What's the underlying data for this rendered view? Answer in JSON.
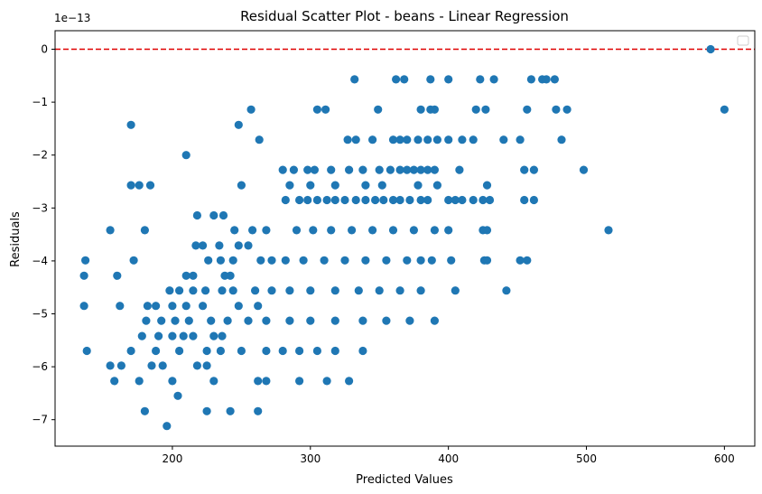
{
  "chart_data": {
    "type": "scatter",
    "title": "Residual Scatter Plot - beans  - Linear Regression",
    "xlabel": "Predicted Values",
    "ylabel": "Residuals",
    "y_offset_label": "1e−13",
    "xlim": [
      115,
      622
    ],
    "ylim": [
      -7.5,
      0.35
    ],
    "xticks": [
      200,
      300,
      400,
      500,
      600
    ],
    "xtick_labels": [
      "200",
      "300",
      "400",
      "500",
      "600"
    ],
    "yticks": [
      0,
      -1,
      -2,
      -3,
      -4,
      -5,
      -6,
      -7
    ],
    "ytick_labels": [
      "0",
      "−1",
      "−2",
      "−3",
      "−4",
      "−5",
      "−6",
      "−7"
    ],
    "grid": false,
    "legend": "top-right (empty)",
    "reference_line": {
      "y": 0,
      "color": "#e00000",
      "style": "dashed"
    },
    "point_color": "#1f77b4",
    "series": [
      {
        "points": [
          [
            590,
            0
          ],
          [
            600,
            -1.14
          ],
          [
            332,
            -0.57
          ],
          [
            362,
            -0.57
          ],
          [
            368,
            -0.57
          ],
          [
            387,
            -0.57
          ],
          [
            400,
            -0.57
          ],
          [
            423,
            -0.57
          ],
          [
            433,
            -0.57
          ],
          [
            460,
            -0.57
          ],
          [
            468,
            -0.57
          ],
          [
            471,
            -0.57
          ],
          [
            477,
            -0.57
          ],
          [
            257,
            -1.14
          ],
          [
            305,
            -1.14
          ],
          [
            311,
            -1.14
          ],
          [
            349,
            -1.14
          ],
          [
            380,
            -1.14
          ],
          [
            387,
            -1.14
          ],
          [
            390,
            -1.14
          ],
          [
            420,
            -1.14
          ],
          [
            427,
            -1.14
          ],
          [
            457,
            -1.14
          ],
          [
            478,
            -1.14
          ],
          [
            486,
            -1.14
          ],
          [
            170,
            -1.43
          ],
          [
            248,
            -1.43
          ],
          [
            263,
            -1.71
          ],
          [
            327,
            -1.71
          ],
          [
            333,
            -1.71
          ],
          [
            345,
            -1.71
          ],
          [
            360,
            -1.71
          ],
          [
            365,
            -1.71
          ],
          [
            370,
            -1.71
          ],
          [
            378,
            -1.71
          ],
          [
            385,
            -1.71
          ],
          [
            392,
            -1.71
          ],
          [
            400,
            -1.71
          ],
          [
            410,
            -1.71
          ],
          [
            418,
            -1.71
          ],
          [
            440,
            -1.71
          ],
          [
            452,
            -1.71
          ],
          [
            482,
            -1.71
          ],
          [
            210,
            -2.0
          ],
          [
            280,
            -2.28
          ],
          [
            288,
            -2.28
          ],
          [
            298,
            -2.28
          ],
          [
            303,
            -2.28
          ],
          [
            315,
            -2.28
          ],
          [
            328,
            -2.28
          ],
          [
            338,
            -2.28
          ],
          [
            350,
            -2.28
          ],
          [
            358,
            -2.28
          ],
          [
            365,
            -2.28
          ],
          [
            370,
            -2.28
          ],
          [
            375,
            -2.28
          ],
          [
            380,
            -2.28
          ],
          [
            385,
            -2.28
          ],
          [
            390,
            -2.28
          ],
          [
            408,
            -2.28
          ],
          [
            455,
            -2.28
          ],
          [
            462,
            -2.28
          ],
          [
            498,
            -2.28
          ],
          [
            170,
            -2.57
          ],
          [
            176,
            -2.57
          ],
          [
            184,
            -2.57
          ],
          [
            250,
            -2.57
          ],
          [
            285,
            -2.57
          ],
          [
            300,
            -2.57
          ],
          [
            318,
            -2.57
          ],
          [
            340,
            -2.57
          ],
          [
            352,
            -2.57
          ],
          [
            378,
            -2.57
          ],
          [
            392,
            -2.57
          ],
          [
            428,
            -2.57
          ],
          [
            282,
            -2.85
          ],
          [
            292,
            -2.85
          ],
          [
            298,
            -2.85
          ],
          [
            305,
            -2.85
          ],
          [
            312,
            -2.85
          ],
          [
            318,
            -2.85
          ],
          [
            325,
            -2.85
          ],
          [
            333,
            -2.85
          ],
          [
            340,
            -2.85
          ],
          [
            347,
            -2.85
          ],
          [
            353,
            -2.85
          ],
          [
            360,
            -2.85
          ],
          [
            365,
            -2.85
          ],
          [
            372,
            -2.85
          ],
          [
            380,
            -2.85
          ],
          [
            385,
            -2.85
          ],
          [
            400,
            -2.85
          ],
          [
            405,
            -2.85
          ],
          [
            410,
            -2.85
          ],
          [
            418,
            -2.85
          ],
          [
            425,
            -2.85
          ],
          [
            430,
            -2.85
          ],
          [
            455,
            -2.85
          ],
          [
            462,
            -2.85
          ],
          [
            218,
            -3.14
          ],
          [
            230,
            -3.14
          ],
          [
            237,
            -3.14
          ],
          [
            155,
            -3.42
          ],
          [
            180,
            -3.42
          ],
          [
            245,
            -3.42
          ],
          [
            258,
            -3.42
          ],
          [
            268,
            -3.42
          ],
          [
            290,
            -3.42
          ],
          [
            302,
            -3.42
          ],
          [
            315,
            -3.42
          ],
          [
            330,
            -3.42
          ],
          [
            345,
            -3.42
          ],
          [
            360,
            -3.42
          ],
          [
            375,
            -3.42
          ],
          [
            390,
            -3.42
          ],
          [
            400,
            -3.42
          ],
          [
            425,
            -3.42
          ],
          [
            428,
            -3.42
          ],
          [
            516,
            -3.42
          ],
          [
            217,
            -3.71
          ],
          [
            222,
            -3.71
          ],
          [
            234,
            -3.71
          ],
          [
            248,
            -3.71
          ],
          [
            255,
            -3.71
          ],
          [
            137,
            -3.99
          ],
          [
            172,
            -3.99
          ],
          [
            226,
            -3.99
          ],
          [
            235,
            -3.99
          ],
          [
            244,
            -3.99
          ],
          [
            264,
            -3.99
          ],
          [
            272,
            -3.99
          ],
          [
            282,
            -3.99
          ],
          [
            295,
            -3.99
          ],
          [
            310,
            -3.99
          ],
          [
            325,
            -3.99
          ],
          [
            340,
            -3.99
          ],
          [
            355,
            -3.99
          ],
          [
            370,
            -3.99
          ],
          [
            380,
            -3.99
          ],
          [
            388,
            -3.99
          ],
          [
            402,
            -3.99
          ],
          [
            426,
            -3.99
          ],
          [
            428,
            -3.99
          ],
          [
            452,
            -3.99
          ],
          [
            457,
            -3.99
          ],
          [
            136,
            -4.28
          ],
          [
            160,
            -4.28
          ],
          [
            210,
            -4.28
          ],
          [
            215,
            -4.28
          ],
          [
            238,
            -4.28
          ],
          [
            242,
            -4.28
          ],
          [
            198,
            -4.56
          ],
          [
            205,
            -4.56
          ],
          [
            215,
            -4.56
          ],
          [
            224,
            -4.56
          ],
          [
            236,
            -4.56
          ],
          [
            244,
            -4.56
          ],
          [
            260,
            -4.56
          ],
          [
            272,
            -4.56
          ],
          [
            285,
            -4.56
          ],
          [
            300,
            -4.56
          ],
          [
            318,
            -4.56
          ],
          [
            335,
            -4.56
          ],
          [
            350,
            -4.56
          ],
          [
            365,
            -4.56
          ],
          [
            380,
            -4.56
          ],
          [
            405,
            -4.56
          ],
          [
            442,
            -4.56
          ],
          [
            136,
            -4.85
          ],
          [
            162,
            -4.85
          ],
          [
            182,
            -4.85
          ],
          [
            188,
            -4.85
          ],
          [
            200,
            -4.85
          ],
          [
            210,
            -4.85
          ],
          [
            222,
            -4.85
          ],
          [
            248,
            -4.85
          ],
          [
            262,
            -4.85
          ],
          [
            181,
            -5.13
          ],
          [
            192,
            -5.13
          ],
          [
            202,
            -5.13
          ],
          [
            212,
            -5.13
          ],
          [
            228,
            -5.13
          ],
          [
            240,
            -5.13
          ],
          [
            255,
            -5.13
          ],
          [
            268,
            -5.13
          ],
          [
            285,
            -5.13
          ],
          [
            300,
            -5.13
          ],
          [
            318,
            -5.13
          ],
          [
            338,
            -5.13
          ],
          [
            355,
            -5.13
          ],
          [
            372,
            -5.13
          ],
          [
            390,
            -5.13
          ],
          [
            178,
            -5.42
          ],
          [
            190,
            -5.42
          ],
          [
            200,
            -5.42
          ],
          [
            208,
            -5.42
          ],
          [
            215,
            -5.42
          ],
          [
            230,
            -5.42
          ],
          [
            236,
            -5.42
          ],
          [
            138,
            -5.7
          ],
          [
            170,
            -5.7
          ],
          [
            188,
            -5.7
          ],
          [
            205,
            -5.7
          ],
          [
            225,
            -5.7
          ],
          [
            235,
            -5.7
          ],
          [
            250,
            -5.7
          ],
          [
            268,
            -5.7
          ],
          [
            280,
            -5.7
          ],
          [
            292,
            -5.7
          ],
          [
            305,
            -5.7
          ],
          [
            318,
            -5.7
          ],
          [
            338,
            -5.7
          ],
          [
            155,
            -5.98
          ],
          [
            163,
            -5.98
          ],
          [
            185,
            -5.98
          ],
          [
            193,
            -5.98
          ],
          [
            218,
            -5.98
          ],
          [
            225,
            -5.98
          ],
          [
            158,
            -6.27
          ],
          [
            176,
            -6.27
          ],
          [
            200,
            -6.27
          ],
          [
            230,
            -6.27
          ],
          [
            262,
            -6.27
          ],
          [
            268,
            -6.27
          ],
          [
            292,
            -6.27
          ],
          [
            312,
            -6.27
          ],
          [
            328,
            -6.27
          ],
          [
            204,
            -6.55
          ],
          [
            180,
            -6.84
          ],
          [
            225,
            -6.84
          ],
          [
            242,
            -6.84
          ],
          [
            262,
            -6.84
          ],
          [
            196,
            -7.12
          ]
        ]
      }
    ]
  }
}
